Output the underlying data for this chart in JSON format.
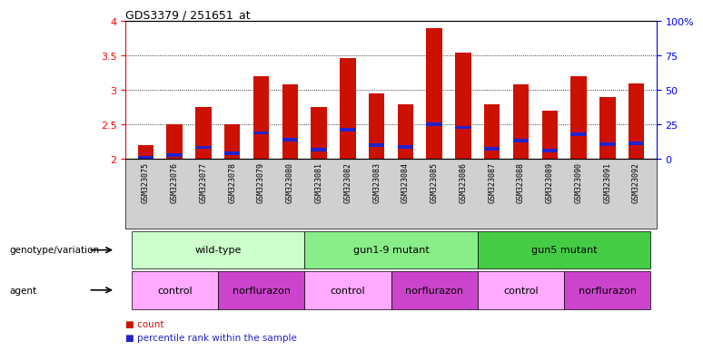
{
  "title": "GDS3379 / 251651_at",
  "samples": [
    "GSM323075",
    "GSM323076",
    "GSM323077",
    "GSM323078",
    "GSM323079",
    "GSM323080",
    "GSM323081",
    "GSM323082",
    "GSM323083",
    "GSM323084",
    "GSM323085",
    "GSM323086",
    "GSM323087",
    "GSM323088",
    "GSM323089",
    "GSM323090",
    "GSM323091",
    "GSM323092"
  ],
  "counts": [
    2.2,
    2.5,
    2.75,
    2.5,
    3.2,
    3.08,
    2.75,
    3.46,
    2.95,
    2.8,
    3.9,
    3.55,
    2.8,
    3.08,
    2.7,
    3.2,
    2.9,
    3.1
  ],
  "percentile_vals": [
    2.02,
    2.06,
    2.17,
    2.08,
    2.38,
    2.28,
    2.14,
    2.43,
    2.2,
    2.18,
    2.5,
    2.46,
    2.15,
    2.27,
    2.12,
    2.36,
    2.22,
    2.23
  ],
  "ylim": [
    2.0,
    4.0
  ],
  "yticks": [
    2.0,
    2.5,
    3.0,
    3.5,
    4.0
  ],
  "ytick_labels_left": [
    "2",
    "2.5",
    "3",
    "3.5",
    "4"
  ],
  "ytick_labels_right": [
    "0",
    "25",
    "50",
    "75",
    "100%"
  ],
  "bar_color": "#cc1100",
  "percentile_color": "#2222cc",
  "bar_width": 0.55,
  "perc_bar_height": 0.05,
  "genotype_groups": [
    {
      "label": "wild-type",
      "start": 0,
      "end": 5,
      "color": "#ccffcc"
    },
    {
      "label": "gun1-9 mutant",
      "start": 6,
      "end": 11,
      "color": "#88ee88"
    },
    {
      "label": "gun5 mutant",
      "start": 12,
      "end": 17,
      "color": "#44cc44"
    }
  ],
  "agent_groups": [
    {
      "label": "control",
      "start": 0,
      "end": 2,
      "color": "#ffaaff"
    },
    {
      "label": "norflurazon",
      "start": 3,
      "end": 5,
      "color": "#cc44cc"
    },
    {
      "label": "control",
      "start": 6,
      "end": 8,
      "color": "#ffaaff"
    },
    {
      "label": "norflurazon",
      "start": 9,
      "end": 11,
      "color": "#cc44cc"
    },
    {
      "label": "control",
      "start": 12,
      "end": 14,
      "color": "#ffaaff"
    },
    {
      "label": "norflurazon",
      "start": 15,
      "end": 17,
      "color": "#cc44cc"
    }
  ],
  "genotype_label": "genotype/variation",
  "agent_label": "agent",
  "legend_count_color": "#cc1100",
  "legend_percentile_color": "#2222cc",
  "xticklabel_bg": "#d0d0d0"
}
